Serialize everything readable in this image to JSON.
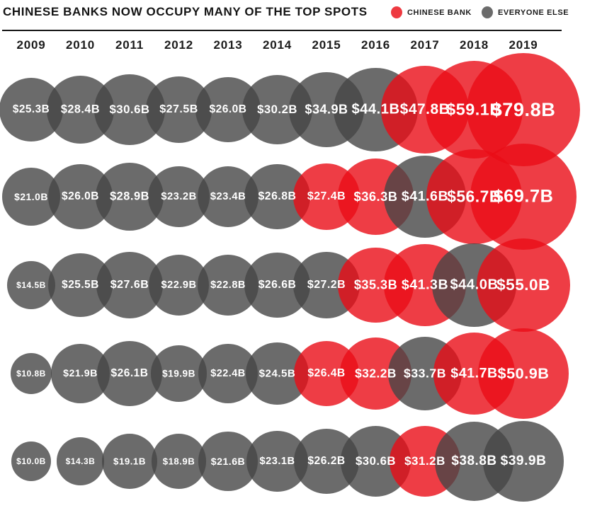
{
  "title": "CHINESE BANKS NOW OCCUPY MANY OF THE TOP SPOTS",
  "legend": [
    {
      "label": "CHINESE BANK",
      "color": "#ee3a41"
    },
    {
      "label": "EVERYONE ELSE",
      "color": "#6b6b6b"
    }
  ],
  "colors": {
    "chinese_bubble_fill": "rgba(234,12,22,0.8)",
    "everyone_else_bubble_fill": "rgba(70,70,70,0.8)",
    "bubble_label_text": "#ffffff",
    "title_text": "#151515"
  },
  "chart_data": {
    "type": "bubble",
    "title": "CHINESE BANKS NOW OCCUPY MANY OF THE TOP SPOTS",
    "categories": [
      "2009",
      "2010",
      "2011",
      "2012",
      "2013",
      "2014",
      "2015",
      "2016",
      "2017",
      "2018",
      "2019"
    ],
    "value_label_format": "$#.#B",
    "legend": {
      "red": "CHINESE BANK",
      "gray": "EVERYONE ELSE"
    },
    "layout": {
      "note": "5 rows of bubbles, one bubble per year column; bubble area proportional to value; red = Chinese bank, gray = everyone else",
      "grid": false,
      "legend_position": "top-right"
    },
    "series": [
      {
        "name": "row-1",
        "values": [
          25.3,
          28.4,
          30.6,
          27.5,
          26.0,
          30.2,
          34.9,
          44.1,
          47.8,
          59.1,
          79.8
        ],
        "chinese_bank": [
          false,
          false,
          false,
          false,
          false,
          false,
          false,
          false,
          true,
          true,
          true
        ]
      },
      {
        "name": "row-2",
        "values": [
          21.0,
          26.0,
          28.9,
          23.2,
          23.4,
          26.8,
          27.4,
          36.3,
          41.6,
          56.7,
          69.7
        ],
        "chinese_bank": [
          false,
          false,
          false,
          false,
          false,
          false,
          true,
          true,
          false,
          true,
          true
        ]
      },
      {
        "name": "row-3",
        "values": [
          14.5,
          25.5,
          27.6,
          22.9,
          22.8,
          26.6,
          27.2,
          35.3,
          41.3,
          44.0,
          55.0
        ],
        "chinese_bank": [
          false,
          false,
          false,
          false,
          false,
          false,
          false,
          true,
          true,
          false,
          true
        ]
      },
      {
        "name": "row-4",
        "values": [
          10.8,
          21.9,
          26.1,
          19.9,
          22.4,
          24.5,
          26.4,
          32.2,
          33.7,
          41.7,
          50.9
        ],
        "chinese_bank": [
          false,
          false,
          false,
          false,
          false,
          false,
          true,
          true,
          false,
          true,
          true
        ]
      },
      {
        "name": "row-5",
        "values": [
          10.0,
          14.3,
          19.1,
          18.9,
          21.6,
          23.1,
          26.2,
          30.6,
          31.2,
          38.8,
          39.9
        ],
        "chinese_bank": [
          false,
          false,
          false,
          false,
          false,
          false,
          false,
          false,
          true,
          false,
          false
        ]
      }
    ]
  }
}
